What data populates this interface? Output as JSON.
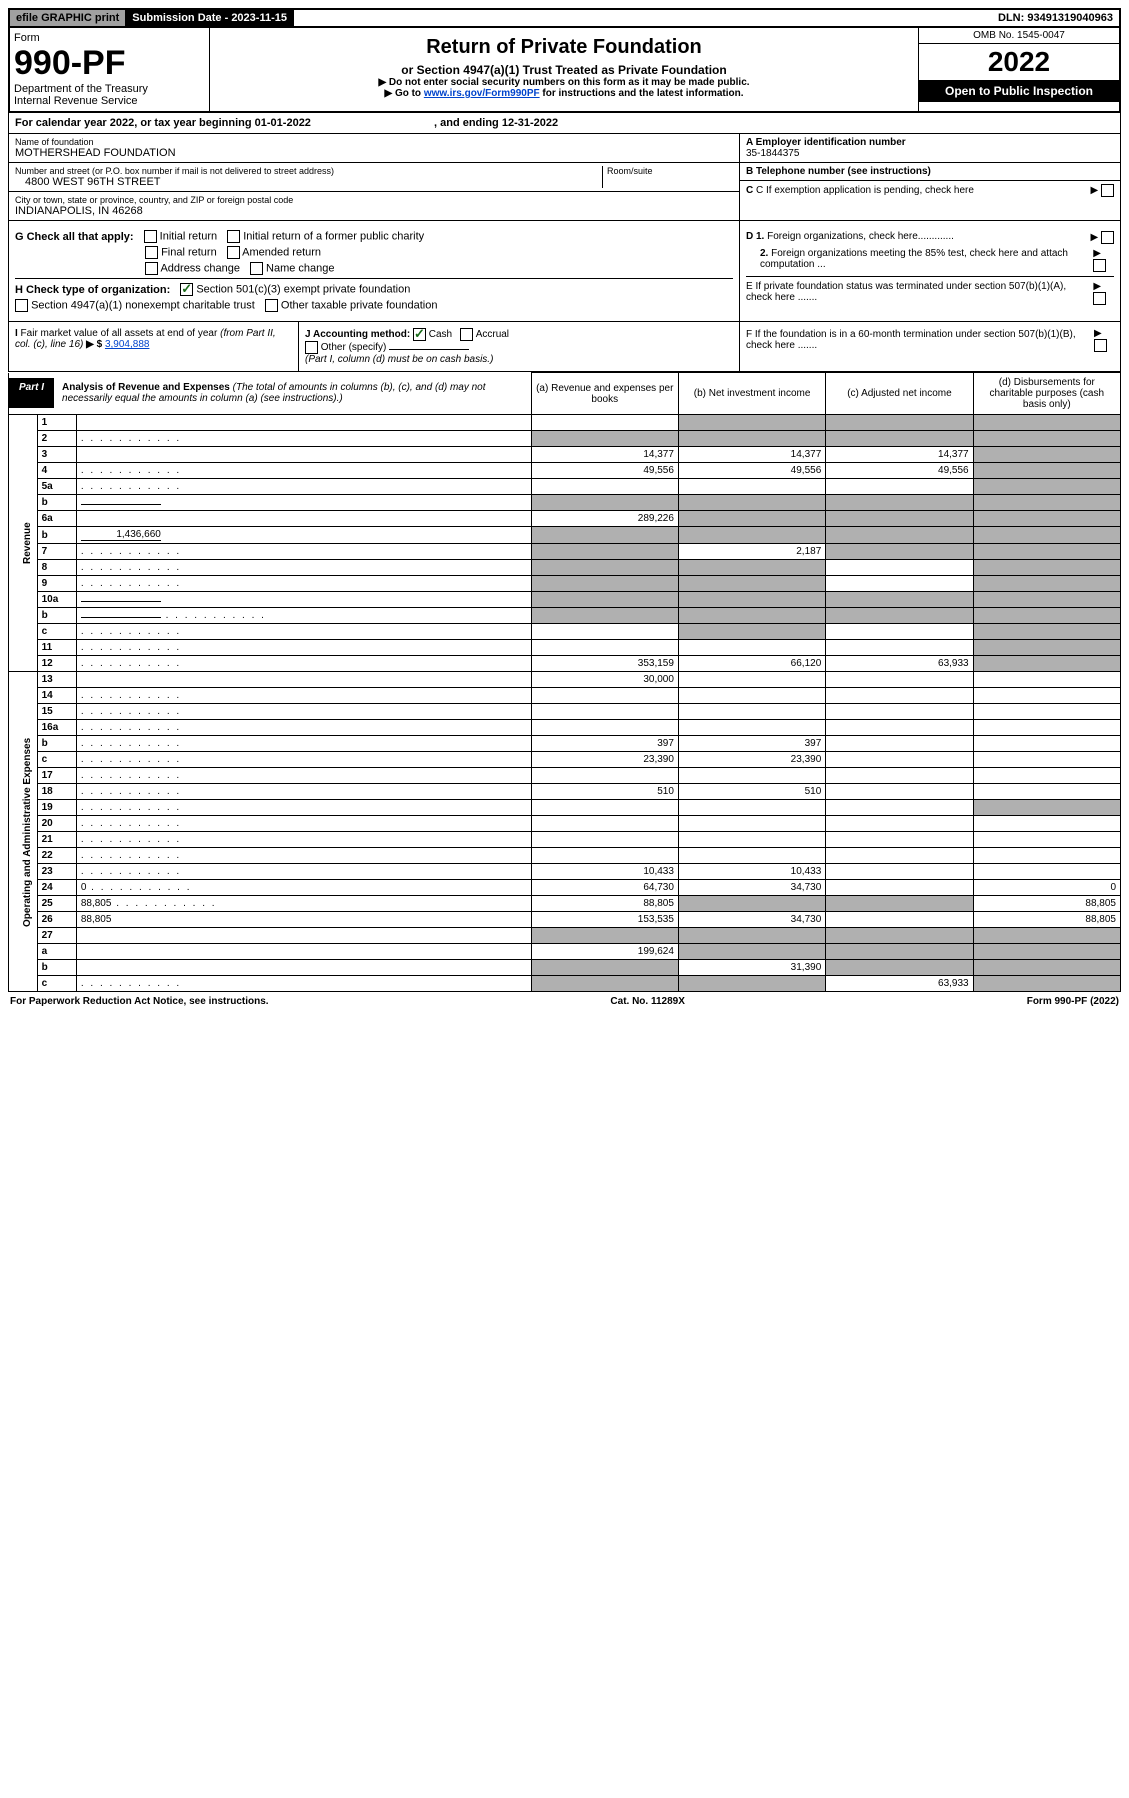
{
  "top_bar": {
    "efile": "efile GRAPHIC print",
    "submission_label": "Submission Date - 2023-11-15",
    "dln": "DLN: 93491319040963"
  },
  "header": {
    "form_label": "Form",
    "form_no": "990-PF",
    "dept": "Department of the Treasury",
    "irs": "Internal Revenue Service",
    "title": "Return of Private Foundation",
    "subtitle": "or Section 4947(a)(1) Trust Treated as Private Foundation",
    "instr1": "▶ Do not enter social security numbers on this form as it may be made public.",
    "instr2_pre": "▶ Go to ",
    "instr2_link": "www.irs.gov/Form990PF",
    "instr2_post": " for instructions and the latest information.",
    "omb": "OMB No. 1545-0047",
    "year": "2022",
    "inspection": "Open to Public Inspection"
  },
  "calendar": {
    "text_pre": "For calendar year 2022, or tax year beginning ",
    "begin": "01-01-2022",
    "mid": " , and ending ",
    "end": "12-31-2022"
  },
  "identity": {
    "name_label": "Name of foundation",
    "name": "MOTHERSHEAD FOUNDATION",
    "addr_label": "Number and street (or P.O. box number if mail is not delivered to street address)",
    "addr": "4800 WEST 96TH STREET",
    "room_label": "Room/suite",
    "room": "",
    "city_label": "City or town, state or province, country, and ZIP or foreign postal code",
    "city": "INDIANAPOLIS, IN  46268",
    "ein_label": "A Employer identification number",
    "ein": "35-1844375",
    "phone_label": "B Telephone number (see instructions)",
    "c_label": "C If exemption application is pending, check here"
  },
  "g_section": {
    "label": "G Check all that apply:",
    "opts": [
      "Initial return",
      "Initial return of a former public charity",
      "Final return",
      "Amended return",
      "Address change",
      "Name change"
    ]
  },
  "h_section": {
    "label": "H Check type of organization:",
    "opt1": "Section 501(c)(3) exempt private foundation",
    "opt2": "Section 4947(a)(1) nonexempt charitable trust",
    "opt3": "Other taxable private foundation"
  },
  "d_section": {
    "d1": "D 1. Foreign organizations, check here",
    "d2": "2. Foreign organizations meeting the 85% test, check here and attach computation ...",
    "e": "E  If private foundation status was terminated under section 507(b)(1)(A), check here .......",
    "f": "F  If the foundation is in a 60-month termination under section 507(b)(1)(B), check here ......."
  },
  "i_section": {
    "label": "I Fair market value of all assets at end of year (from Part II, col. (c), line 16)",
    "arrow": "▶ $",
    "value": "3,904,888"
  },
  "j_section": {
    "label": "J Accounting method:",
    "cash": "Cash",
    "accrual": "Accrual",
    "other": "Other (specify)",
    "note": "(Part I, column (d) must be on cash basis.)"
  },
  "part1": {
    "label": "Part I",
    "title": "Analysis of Revenue and Expenses",
    "desc": " (The total of amounts in columns (b), (c), and (d) may not necessarily equal the amounts in column (a) (see instructions).)",
    "col_a": "(a)   Revenue and expenses per books",
    "col_b": "(b)   Net investment income",
    "col_c": "(c)   Adjusted net income",
    "col_d": "(d)   Disbursements for charitable purposes (cash basis only)"
  },
  "side_labels": {
    "revenue": "Revenue",
    "expenses": "Operating and Administrative Expenses"
  },
  "rows": [
    {
      "n": "1",
      "d": "",
      "a": "",
      "b": "",
      "c": "",
      "shade": [
        false,
        true,
        true,
        true
      ]
    },
    {
      "n": "2",
      "d": "",
      "dots": true,
      "a": "",
      "b": "",
      "c": "",
      "shade": [
        true,
        true,
        true,
        true
      ],
      "check": true
    },
    {
      "n": "3",
      "d": "",
      "a": "14,377",
      "b": "14,377",
      "c": "14,377",
      "shade": [
        false,
        false,
        false,
        true
      ]
    },
    {
      "n": "4",
      "d": "",
      "dots": true,
      "a": "49,556",
      "b": "49,556",
      "c": "49,556",
      "shade": [
        false,
        false,
        false,
        true
      ]
    },
    {
      "n": "5a",
      "d": "",
      "dots": true,
      "a": "",
      "b": "",
      "c": "",
      "shade": [
        false,
        false,
        false,
        true
      ]
    },
    {
      "n": "b",
      "d": "",
      "inline": "",
      "a": "",
      "b": "",
      "c": "",
      "shade": [
        true,
        true,
        true,
        true
      ]
    },
    {
      "n": "6a",
      "d": "",
      "a": "289,226",
      "b": "",
      "c": "",
      "shade": [
        false,
        true,
        true,
        true
      ]
    },
    {
      "n": "b",
      "d": "",
      "inline": "1,436,660",
      "a": "",
      "b": "",
      "c": "",
      "shade": [
        true,
        true,
        true,
        true
      ]
    },
    {
      "n": "7",
      "d": "",
      "dots": true,
      "a": "",
      "b": "2,187",
      "c": "",
      "shade": [
        true,
        false,
        true,
        true
      ]
    },
    {
      "n": "8",
      "d": "",
      "dots": true,
      "a": "",
      "b": "",
      "c": "",
      "shade": [
        true,
        true,
        false,
        true
      ]
    },
    {
      "n": "9",
      "d": "",
      "dots": true,
      "a": "",
      "b": "",
      "c": "",
      "shade": [
        true,
        true,
        false,
        true
      ]
    },
    {
      "n": "10a",
      "d": "",
      "inline": "",
      "a": "",
      "b": "",
      "c": "",
      "shade": [
        true,
        true,
        true,
        true
      ]
    },
    {
      "n": "b",
      "d": "",
      "dots": true,
      "inline": "",
      "a": "",
      "b": "",
      "c": "",
      "shade": [
        true,
        true,
        true,
        true
      ]
    },
    {
      "n": "c",
      "d": "",
      "dots": true,
      "a": "",
      "b": "",
      "c": "",
      "shade": [
        false,
        true,
        false,
        true
      ]
    },
    {
      "n": "11",
      "d": "",
      "dots": true,
      "a": "",
      "b": "",
      "c": "",
      "shade": [
        false,
        false,
        false,
        true
      ]
    },
    {
      "n": "12",
      "d": "",
      "dots": true,
      "a": "353,159",
      "b": "66,120",
      "c": "63,933",
      "shade": [
        false,
        false,
        false,
        true
      ]
    },
    {
      "n": "13",
      "d": "",
      "a": "30,000",
      "b": "",
      "c": "",
      "shade": [
        false,
        false,
        false,
        false
      ]
    },
    {
      "n": "14",
      "d": "",
      "dots": true,
      "a": "",
      "b": "",
      "c": "",
      "shade": [
        false,
        false,
        false,
        false
      ]
    },
    {
      "n": "15",
      "d": "",
      "dots": true,
      "a": "",
      "b": "",
      "c": "",
      "shade": [
        false,
        false,
        false,
        false
      ]
    },
    {
      "n": "16a",
      "d": "",
      "dots": true,
      "a": "",
      "b": "",
      "c": "",
      "shade": [
        false,
        false,
        false,
        false
      ]
    },
    {
      "n": "b",
      "d": "",
      "dots": true,
      "a": "397",
      "b": "397",
      "c": "",
      "shade": [
        false,
        false,
        false,
        false
      ]
    },
    {
      "n": "c",
      "d": "",
      "dots": true,
      "a": "23,390",
      "b": "23,390",
      "c": "",
      "shade": [
        false,
        false,
        false,
        false
      ]
    },
    {
      "n": "17",
      "d": "",
      "dots": true,
      "a": "",
      "b": "",
      "c": "",
      "shade": [
        false,
        false,
        false,
        false
      ]
    },
    {
      "n": "18",
      "d": "",
      "dots": true,
      "a": "510",
      "b": "510",
      "c": "",
      "shade": [
        false,
        false,
        false,
        false
      ]
    },
    {
      "n": "19",
      "d": "",
      "dots": true,
      "a": "",
      "b": "",
      "c": "",
      "shade": [
        false,
        false,
        false,
        true
      ]
    },
    {
      "n": "20",
      "d": "",
      "dots": true,
      "a": "",
      "b": "",
      "c": "",
      "shade": [
        false,
        false,
        false,
        false
      ]
    },
    {
      "n": "21",
      "d": "",
      "dots": true,
      "a": "",
      "b": "",
      "c": "",
      "shade": [
        false,
        false,
        false,
        false
      ]
    },
    {
      "n": "22",
      "d": "",
      "dots": true,
      "a": "",
      "b": "",
      "c": "",
      "shade": [
        false,
        false,
        false,
        false
      ]
    },
    {
      "n": "23",
      "d": "",
      "dots": true,
      "a": "10,433",
      "b": "10,433",
      "c": "",
      "shade": [
        false,
        false,
        false,
        false
      ]
    },
    {
      "n": "24",
      "d": "0",
      "dots": true,
      "a": "64,730",
      "b": "34,730",
      "c": "",
      "shade": [
        false,
        false,
        false,
        false
      ]
    },
    {
      "n": "25",
      "d": "88,805",
      "dots": true,
      "a": "88,805",
      "b": "",
      "c": "",
      "shade": [
        false,
        true,
        true,
        false
      ]
    },
    {
      "n": "26",
      "d": "88,805",
      "a": "153,535",
      "b": "34,730",
      "c": "",
      "shade": [
        false,
        false,
        false,
        false
      ]
    },
    {
      "n": "27",
      "d": "",
      "a": "",
      "b": "",
      "c": "",
      "shade": [
        true,
        true,
        true,
        true
      ]
    },
    {
      "n": "a",
      "d": "",
      "a": "199,624",
      "b": "",
      "c": "",
      "shade": [
        false,
        true,
        true,
        true
      ]
    },
    {
      "n": "b",
      "d": "",
      "a": "",
      "b": "31,390",
      "c": "",
      "shade": [
        true,
        false,
        true,
        true
      ]
    },
    {
      "n": "c",
      "d": "",
      "dots": true,
      "a": "",
      "b": "",
      "c": "63,933",
      "shade": [
        true,
        true,
        false,
        true
      ]
    }
  ],
  "footer": {
    "left": "For Paperwork Reduction Act Notice, see instructions.",
    "mid": "Cat. No. 11289X",
    "right_pre": "Form ",
    "right_form": "990-PF",
    "right_post": " (2022)"
  }
}
